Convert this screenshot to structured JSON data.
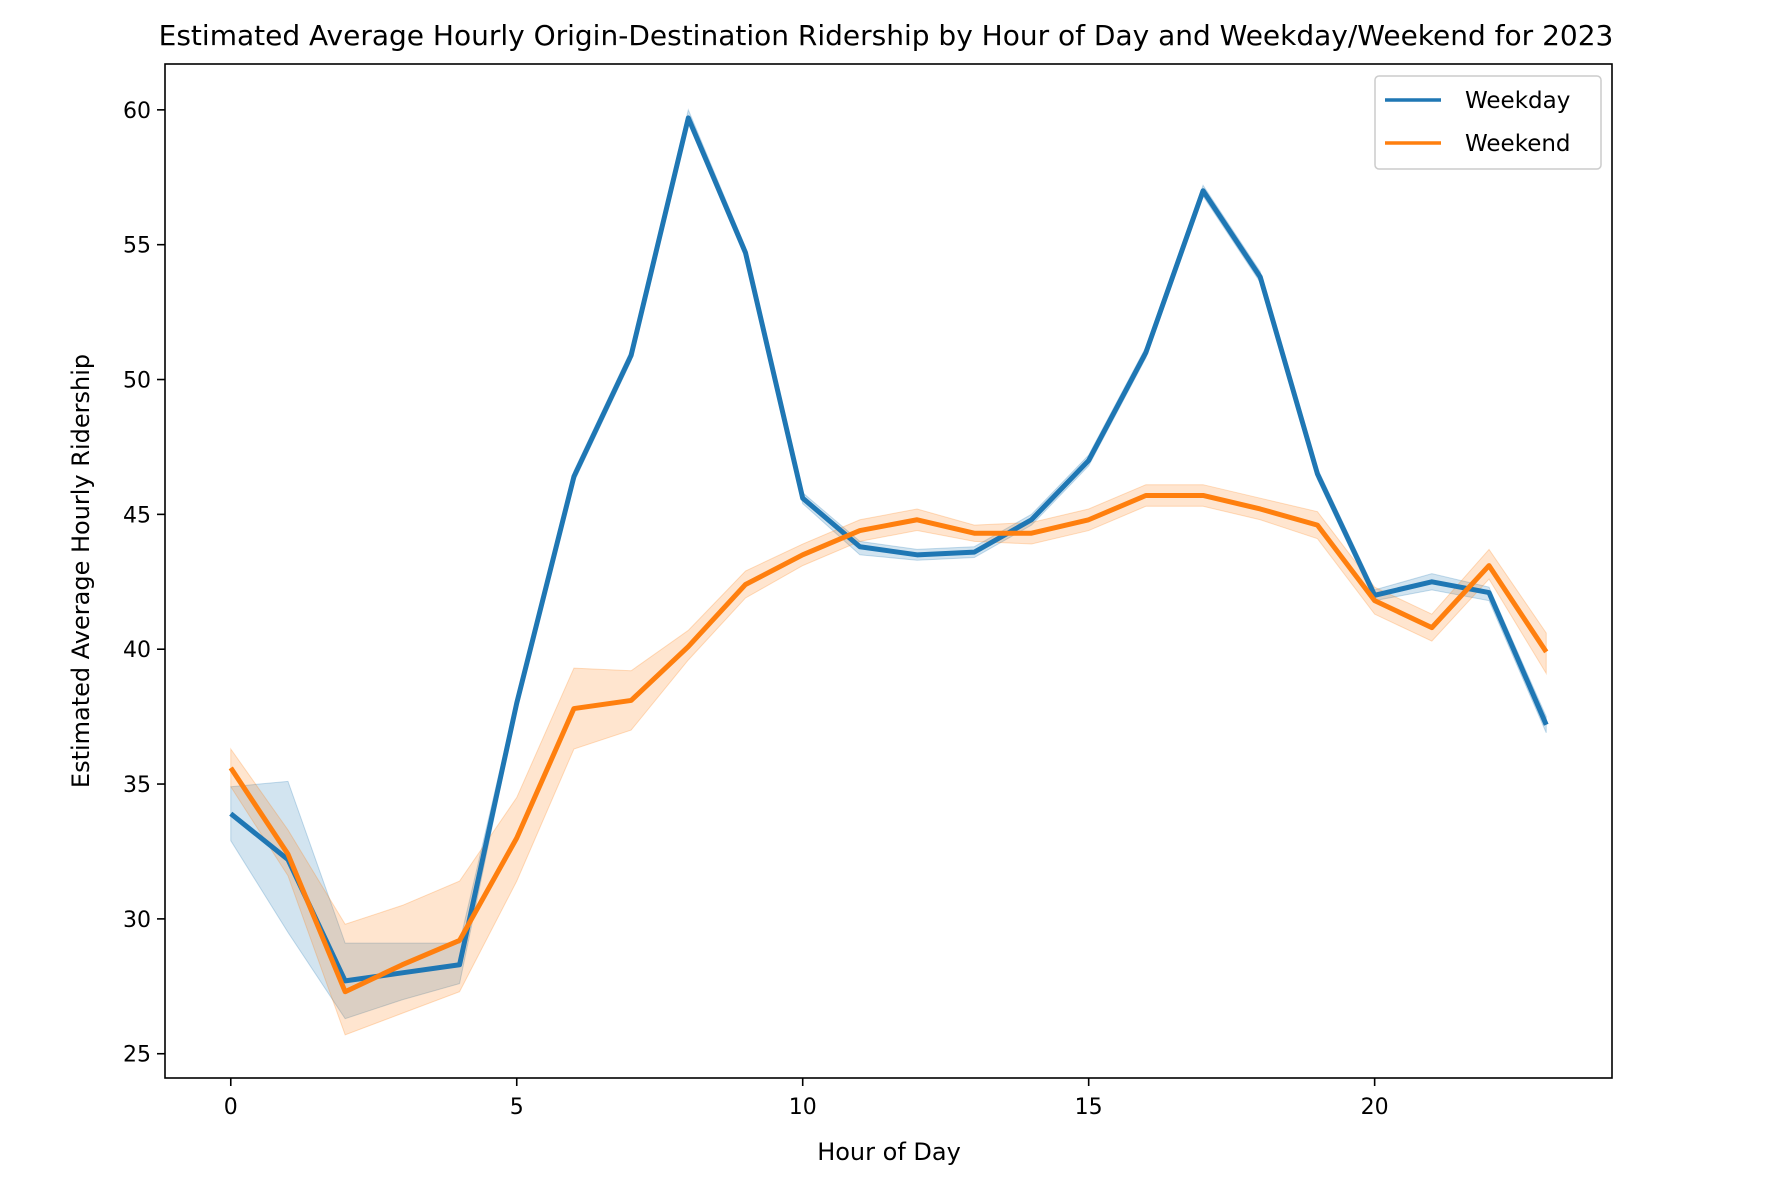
{
  "chart_data": {
    "type": "line",
    "title": "Estimated Average Hourly Origin-Destination Ridership by Hour of Day and Weekday/Weekend for 2023",
    "xlabel": "Hour of Day",
    "ylabel": "Estimated Average Hourly Ridership",
    "xlim": [
      -1.15,
      24.15
    ],
    "ylim": [
      24.1,
      61.7
    ],
    "xticks": [
      0,
      5,
      10,
      15,
      20
    ],
    "yticks": [
      25,
      30,
      35,
      40,
      45,
      50,
      55,
      60
    ],
    "grid": false,
    "legend_position": "top-right",
    "x": [
      0,
      1,
      2,
      3,
      4,
      5,
      6,
      7,
      8,
      9,
      10,
      11,
      12,
      13,
      14,
      15,
      16,
      17,
      18,
      19,
      20,
      21,
      22,
      23
    ],
    "series": [
      {
        "name": "Weekday",
        "color": "#1f77b4",
        "values": [
          33.9,
          32.2,
          27.7,
          28.0,
          28.3,
          38.0,
          46.4,
          50.9,
          59.7,
          54.7,
          45.6,
          43.8,
          43.5,
          43.6,
          44.8,
          47.0,
          51.0,
          57.0,
          53.8,
          46.5,
          42.0,
          42.5,
          42.1,
          37.2
        ],
        "ci_low": [
          32.9,
          29.5,
          26.3,
          27.0,
          27.6,
          37.8,
          46.2,
          50.7,
          59.5,
          54.5,
          45.4,
          43.5,
          43.3,
          43.4,
          44.6,
          46.8,
          50.8,
          56.8,
          53.6,
          46.3,
          41.8,
          42.2,
          41.8,
          36.9
        ],
        "ci_high": [
          34.9,
          35.1,
          29.1,
          29.1,
          29.1,
          38.2,
          46.6,
          51.1,
          60.0,
          54.9,
          45.8,
          44.0,
          43.7,
          43.8,
          45.0,
          47.2,
          51.2,
          57.2,
          54.0,
          46.7,
          42.2,
          42.8,
          42.3,
          37.5
        ]
      },
      {
        "name": "Weekend",
        "color": "#ff7f0e",
        "values": [
          35.6,
          32.4,
          27.3,
          28.3,
          29.2,
          33.0,
          37.8,
          38.1,
          40.1,
          42.4,
          43.5,
          44.4,
          44.8,
          44.3,
          44.3,
          44.8,
          45.7,
          45.7,
          45.2,
          44.6,
          41.8,
          40.8,
          43.1,
          39.9
        ],
        "ci_low": [
          34.9,
          31.6,
          25.7,
          26.5,
          27.3,
          31.4,
          36.3,
          37.0,
          39.6,
          41.9,
          43.1,
          44.0,
          44.4,
          44.0,
          43.9,
          44.4,
          45.3,
          45.3,
          44.8,
          44.1,
          41.3,
          40.3,
          42.6,
          39.1
        ],
        "ci_high": [
          36.3,
          33.3,
          29.8,
          30.5,
          31.4,
          34.5,
          39.3,
          39.2,
          40.7,
          42.9,
          43.9,
          44.8,
          45.2,
          44.6,
          44.7,
          45.2,
          46.1,
          46.1,
          45.6,
          45.1,
          42.3,
          41.3,
          43.7,
          40.6
        ]
      }
    ]
  }
}
